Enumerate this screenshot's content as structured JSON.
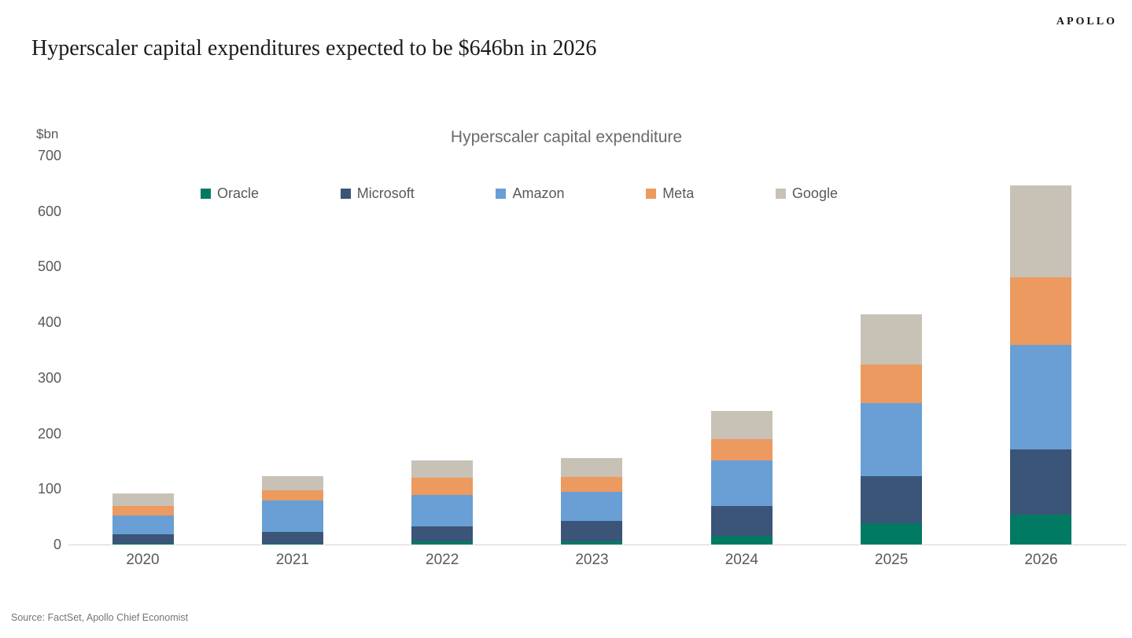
{
  "header": {
    "brand": "APOLLO",
    "title": "Hyperscaler capital expenditures expected to be $646bn in 2026"
  },
  "chart_data": {
    "type": "bar",
    "stacked": true,
    "title": "Hyperscaler capital expenditure",
    "unit_label": "$bn",
    "categories": [
      "2020",
      "2021",
      "2022",
      "2023",
      "2024",
      "2025",
      "2026"
    ],
    "series": [
      {
        "name": "Oracle",
        "color": "#007A62",
        "values": [
          2,
          2,
          5,
          6,
          15,
          38,
          54
        ]
      },
      {
        "name": "Microsoft",
        "color": "#3A5577",
        "values": [
          16,
          21,
          27,
          36,
          55,
          85,
          117
        ]
      },
      {
        "name": "Amazon",
        "color": "#699FD4",
        "values": [
          35,
          56,
          57,
          53,
          82,
          132,
          188
        ]
      },
      {
        "name": "Meta",
        "color": "#EC9A5F",
        "values": [
          16,
          19,
          31,
          26,
          37,
          69,
          122
        ]
      },
      {
        "name": "Google",
        "color": "#C8C1B6",
        "values": [
          23,
          25,
          32,
          34,
          52,
          91,
          165
        ]
      }
    ],
    "totals": [
      92,
      123,
      152,
      155,
      241,
      415,
      646
    ],
    "ylim": [
      0,
      700
    ],
    "ytick_interval": 100,
    "yticks": [
      700,
      600,
      500,
      400,
      300,
      200,
      100,
      0
    ],
    "legend_position": "top",
    "gridlines": false,
    "axis_color": "#d6d4d1",
    "text_color": "#595959"
  },
  "footer": {
    "source": "Source: FactSet, Apollo Chief Economist"
  }
}
